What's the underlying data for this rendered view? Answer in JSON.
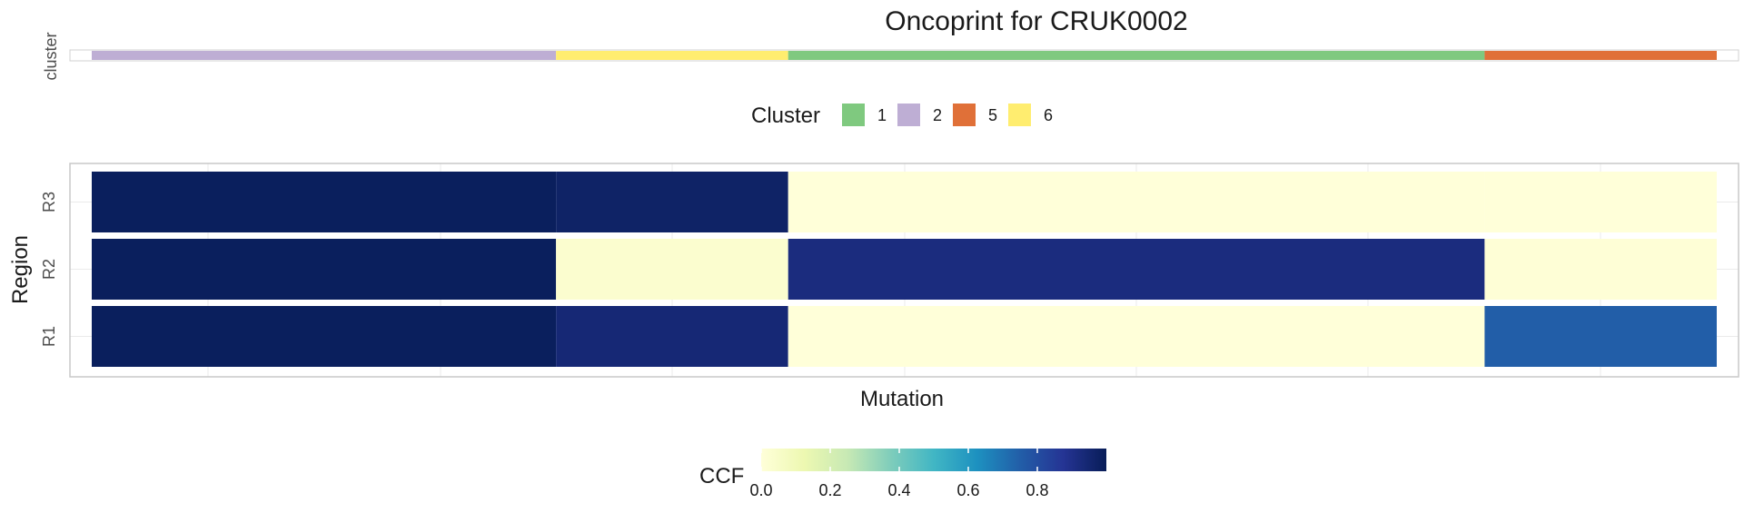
{
  "chart_data": {
    "type": "heatmap",
    "title": "Oncoprint for CRUK0002",
    "xlabel": "Mutation",
    "ylabel": "Region",
    "cluster_strip_label": "cluster",
    "regions": [
      "R3",
      "R2",
      "R1"
    ],
    "clusters": [
      {
        "id": "2",
        "mutations": 8,
        "ccf": {
          "R1": 0.99,
          "R2": 0.99,
          "R3": 0.99
        }
      },
      {
        "id": "6",
        "mutations": 4,
        "ccf": {
          "R1": 0.94,
          "R2": 0.03,
          "R3": 0.97
        }
      },
      {
        "id": "1",
        "mutations": 12,
        "ccf": {
          "R1": 0.0,
          "R2": 0.92,
          "R3": 0.0
        }
      },
      {
        "id": "5",
        "mutations": 4,
        "ccf": {
          "R1": 0.75,
          "R2": 0.01,
          "R3": 0.0
        }
      }
    ],
    "cluster_legend": {
      "title": "Cluster",
      "entries": [
        {
          "label": "1",
          "color": "#7fc97f"
        },
        {
          "label": "2",
          "color": "#beaed4"
        },
        {
          "label": "5",
          "color": "#e07038"
        },
        {
          "label": "6",
          "color": "#ffed6f"
        }
      ]
    },
    "ccf_legend": {
      "title": "CCF",
      "ticks": [
        "0.0",
        "0.2",
        "0.4",
        "0.6",
        "0.8"
      ],
      "tick_values": [
        0,
        0.2,
        0.4,
        0.6,
        0.8
      ],
      "range": [
        0,
        1
      ],
      "colormap": "YlGnBu"
    },
    "grid": true,
    "legend_position": "bottom"
  }
}
